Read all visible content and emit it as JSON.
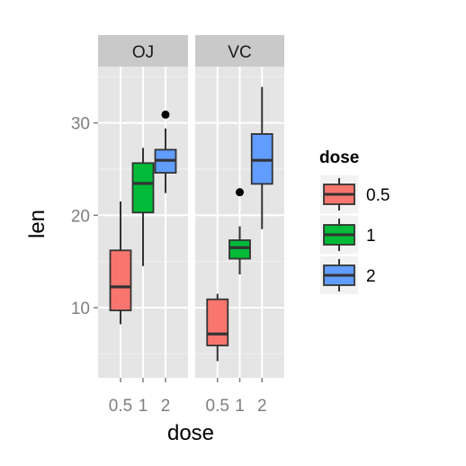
{
  "chart_data": {
    "type": "boxplot",
    "facets": [
      "OJ",
      "VC"
    ],
    "categories": [
      "0.5",
      "1",
      "2"
    ],
    "xlabel": "dose",
    "ylabel": "len",
    "ylim": [
      2.4,
      36.1
    ],
    "yticks": [
      10,
      20,
      30
    ],
    "grid": true,
    "legend": {
      "title": "dose",
      "position": "right",
      "entries": [
        "0.5",
        "1",
        "2"
      ]
    },
    "colors": {
      "0.5": "#F8766D",
      "1": "#00BA38",
      "2": "#619CFF"
    },
    "series": [
      {
        "facet": "OJ",
        "boxes": [
          {
            "dose": "0.5",
            "min": 8.2,
            "q1": 9.7,
            "median": 12.25,
            "q3": 16.2,
            "max": 21.5,
            "outliers": []
          },
          {
            "dose": "1",
            "min": 14.5,
            "q1": 20.3,
            "median": 23.45,
            "q3": 25.65,
            "max": 27.3,
            "outliers": []
          },
          {
            "dose": "2",
            "min": 22.4,
            "q1": 24.6,
            "median": 25.95,
            "q3": 27.1,
            "max": 29.4,
            "outliers": [
              30.9
            ]
          }
        ]
      },
      {
        "facet": "VC",
        "boxes": [
          {
            "dose": "0.5",
            "min": 4.2,
            "q1": 5.9,
            "median": 7.15,
            "q3": 10.9,
            "max": 11.5,
            "outliers": []
          },
          {
            "dose": "1",
            "min": 13.6,
            "q1": 15.3,
            "median": 16.5,
            "q3": 17.3,
            "max": 18.8,
            "outliers": [
              22.5
            ]
          },
          {
            "dose": "2",
            "min": 18.5,
            "q1": 23.4,
            "median": 25.95,
            "q3": 28.8,
            "max": 33.9,
            "outliers": []
          }
        ]
      }
    ]
  }
}
